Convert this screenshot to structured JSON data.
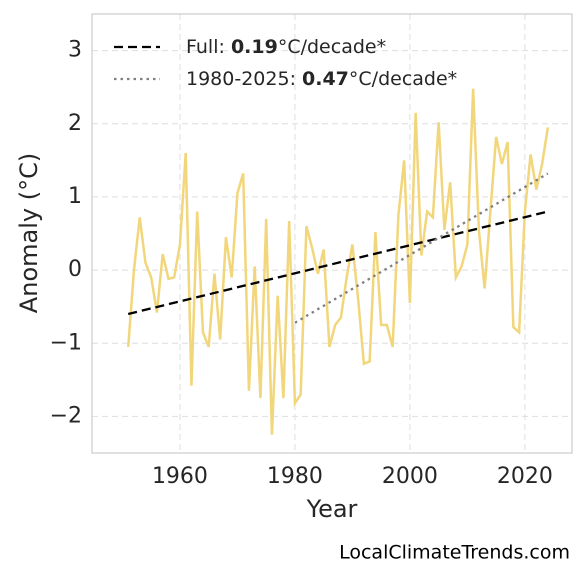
{
  "chart_data": {
    "type": "line",
    "xlabel": "Year",
    "ylabel": "Anomaly (°C)",
    "source": "LocalClimateTrends.com",
    "xlim": [
      1944.7,
      2028.2
    ],
    "xticks": [
      1960,
      1980,
      2000,
      2020
    ],
    "ylim": [
      -2.5,
      3.5
    ],
    "yticks": [
      {
        "value": -2,
        "label": "−2"
      },
      {
        "value": -1,
        "label": "−1"
      },
      0,
      1,
      2,
      3
    ],
    "grid": true,
    "legend": "upper left",
    "series": [
      {
        "color": "#f2d67c",
        "linestyle": "solid",
        "x": [
          1951,
          1952,
          1953,
          1954,
          1955,
          1956,
          1957,
          1958,
          1959,
          1960,
          1961,
          1962,
          1963,
          1964,
          1965,
          1966,
          1967,
          1968,
          1969,
          1970,
          1971,
          1972,
          1973,
          1974,
          1975,
          1976,
          1977,
          1978,
          1979,
          1980,
          1981,
          1982,
          1983,
          1984,
          1985,
          1986,
          1987,
          1988,
          1989,
          1990,
          1991,
          1992,
          1993,
          1994,
          1995,
          1996,
          1997,
          1998,
          1999,
          2000,
          2001,
          2002,
          2003,
          2004,
          2005,
          2006,
          2007,
          2008,
          2009,
          2010,
          2011,
          2012,
          2013,
          2014,
          2015,
          2016,
          2017,
          2018,
          2019,
          2020,
          2021,
          2022,
          2023,
          2024
        ],
        "values": [
          -1.05,
          0.0,
          0.72,
          0.1,
          -0.1,
          -0.58,
          0.22,
          -0.12,
          -0.1,
          0.35,
          1.6,
          -1.58,
          0.8,
          -0.85,
          -1.05,
          -0.05,
          -0.95,
          0.45,
          -0.1,
          1.05,
          1.32,
          -1.65,
          0.05,
          -1.75,
          0.7,
          -2.25,
          -0.35,
          -1.75,
          0.67,
          -1.82,
          -1.7,
          0.6,
          0.3,
          -0.05,
          0.28,
          -1.05,
          -0.75,
          -0.65,
          -0.1,
          0.35,
          -0.4,
          -1.28,
          -1.25,
          0.52,
          -0.75,
          -0.75,
          -1.05,
          0.75,
          1.5,
          -0.45,
          2.15,
          0.2,
          0.8,
          0.72,
          2.02,
          0.55,
          1.2,
          -0.1,
          0.05,
          0.35,
          2.48,
          0.55,
          -0.25,
          0.8,
          1.82,
          1.45,
          1.75,
          -0.78,
          -0.85,
          0.8,
          1.58,
          1.1,
          1.45,
          1.95
        ]
      },
      {
        "name": "Full: 0.19°C/decade*",
        "color": "#000000",
        "linestyle": "dashed",
        "x": [
          1951,
          2024
        ],
        "values": [
          -0.6,
          0.8
        ]
      },
      {
        "name": "1980-2025: 0.47°C/decade*",
        "color": "#808080",
        "linestyle": "dotted",
        "x": [
          1980,
          2024
        ],
        "values": [
          -0.72,
          1.32
        ]
      }
    ]
  }
}
